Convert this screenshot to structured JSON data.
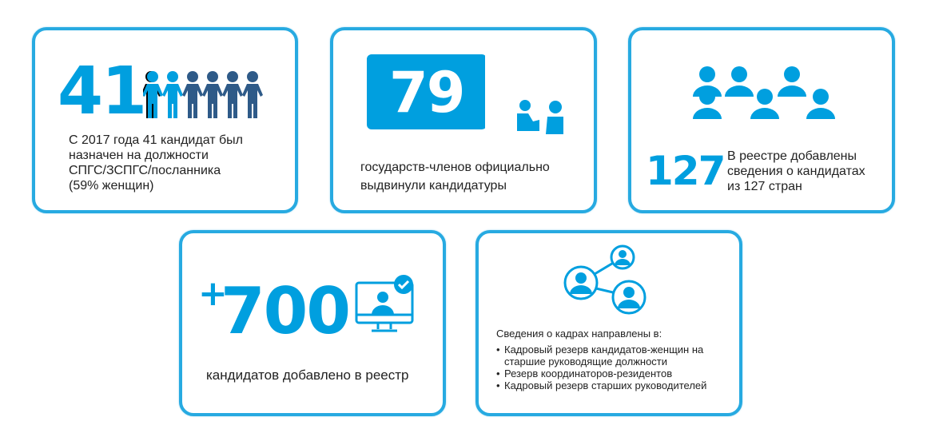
{
  "colors": {
    "accent": "#009fdf",
    "dark": "#2e5a88",
    "border": "#27aae1"
  },
  "cards": [
    {
      "number": "41",
      "icon": "people-holding-hands-icon",
      "text_lines": [
        "С 2017 года 41 кандидат был",
        "назначен на должности",
        "СПГС/ЗСПГС/посланника",
        "(59% женщин)"
      ]
    },
    {
      "number": "79",
      "icon": "meeting-people-icon",
      "text_lines": [
        "государств-членов официально",
        "выдвинули кандидатуры"
      ]
    },
    {
      "number": "127",
      "icon": "group-people-icon",
      "text_lines": [
        "В реестре добавлены",
        "сведения о кандидатах",
        "из 127 стран"
      ]
    },
    {
      "prefix": "+",
      "number": "700",
      "icon": "monitor-user-check-icon",
      "text_lines": [
        "кандидатов добавлено в реестр"
      ]
    },
    {
      "icon": "network-users-icon",
      "heading": "Сведения о кадрах направлены в:",
      "items": [
        "Кадровый резерв кандидатов-женщин на старшие руководящие должности",
        "Резерв координаторов-резидентов",
        "Кадровый резерв старших руководителей"
      ]
    }
  ]
}
